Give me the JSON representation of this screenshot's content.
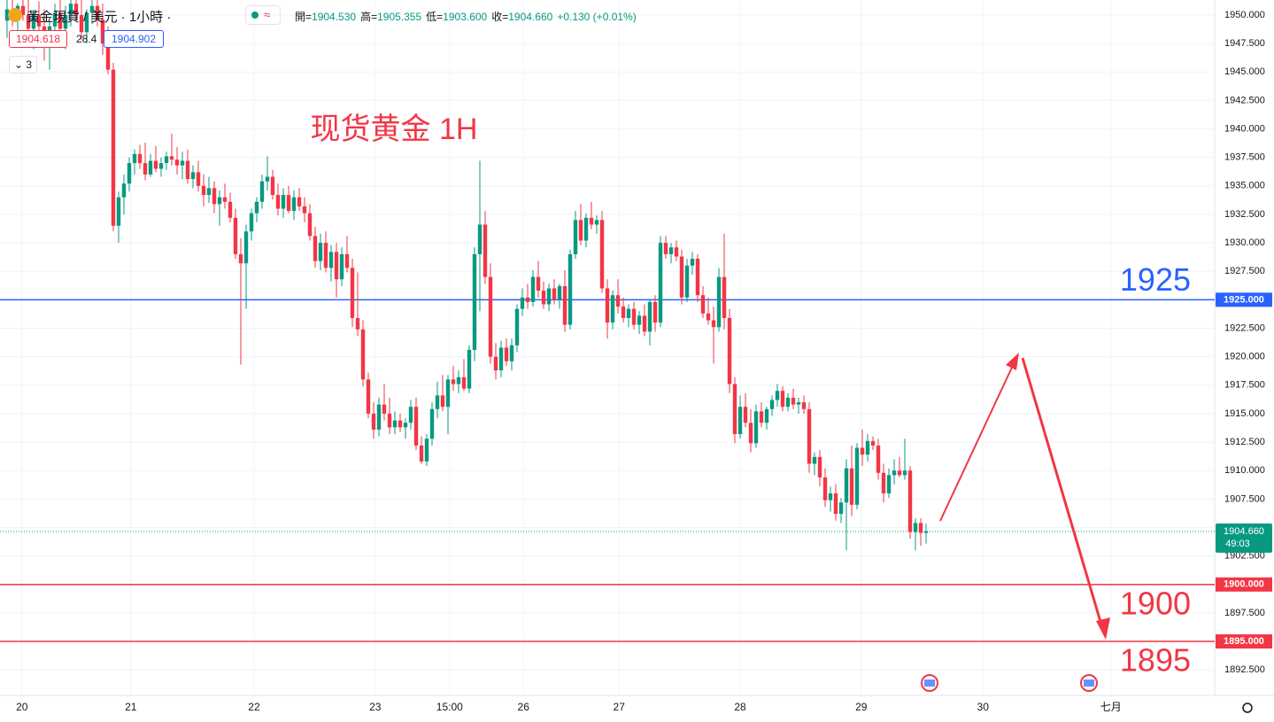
{
  "header": {
    "symbol": "黃金現貨 / 美元 · 1小時 ·",
    "approx": "≈",
    "ohlc": [
      {
        "label": "開=",
        "value": "1904.530"
      },
      {
        "label": "高=",
        "value": "1905.355"
      },
      {
        "label": "低=",
        "value": "1903.600"
      },
      {
        "label": "收=",
        "value": "1904.660"
      }
    ],
    "change": "+0.130 (+0.01%)",
    "sell": "1904.618",
    "spread": "28.4",
    "buy": "1904.902",
    "indicators": "3"
  },
  "chart_data": {
    "type": "candlestick",
    "title": "现货黄金 1H",
    "up_color": "#089981",
    "down_color": "#f23645",
    "grid": true,
    "xlim": [
      -1.33,
      227.33
    ],
    "ylim": [
      1890.26,
      1951.32
    ],
    "xticks": [
      {
        "value": 2.8,
        "label": "20"
      },
      {
        "value": 23.3,
        "label": "21"
      },
      {
        "value": 46.5,
        "label": "22"
      },
      {
        "value": 69.3,
        "label": "23"
      },
      {
        "value": 83.3,
        "label": "15:00"
      },
      {
        "value": 97.2,
        "label": "26"
      },
      {
        "value": 115.2,
        "label": "27"
      },
      {
        "value": 138,
        "label": "28"
      },
      {
        "value": 160.8,
        "label": "29"
      },
      {
        "value": 183.7,
        "label": "30"
      },
      {
        "value": 207.8,
        "label": "七月"
      }
    ],
    "yticks": [
      {
        "value": 1892.5,
        "label": "1892.500"
      },
      {
        "value": 1895,
        "label": "1895.000"
      },
      {
        "value": 1897.5,
        "label": "1897.500"
      },
      {
        "value": 1900,
        "label": "1900.000"
      },
      {
        "value": 1902.5,
        "label": "1902.500"
      },
      {
        "value": 1905,
        "label": "1905.000"
      },
      {
        "value": 1907.5,
        "label": "1907.500"
      },
      {
        "value": 1910,
        "label": "1910.000"
      },
      {
        "value": 1912.5,
        "label": "1912.500"
      },
      {
        "value": 1915,
        "label": "1915.000"
      },
      {
        "value": 1917.5,
        "label": "1917.500"
      },
      {
        "value": 1920,
        "label": "1920.000"
      },
      {
        "value": 1922.5,
        "label": "1922.500"
      },
      {
        "value": 1925,
        "label": "1925.000"
      },
      {
        "value": 1927.5,
        "label": "1927.500"
      },
      {
        "value": 1930,
        "label": "1930.000"
      },
      {
        "value": 1932.5,
        "label": "1932.500"
      },
      {
        "value": 1935,
        "label": "1935.000"
      },
      {
        "value": 1937.5,
        "label": "1937.500"
      },
      {
        "value": 1940,
        "label": "1940.000"
      },
      {
        "value": 1942.5,
        "label": "1942.500"
      },
      {
        "value": 1945,
        "label": "1945.000"
      },
      {
        "value": 1947.5,
        "label": "1947.500"
      },
      {
        "value": 1950,
        "label": "1950.000"
      }
    ],
    "levels": [
      {
        "value": 1925,
        "label": "1925.000",
        "color": "#2962ff"
      },
      {
        "value": 1900,
        "label": "1900.000",
        "color": "#f23645"
      },
      {
        "value": 1895,
        "label": "1895.000",
        "color": "#f23645"
      }
    ],
    "last": {
      "value": 1904.66,
      "label": "1904.660",
      "countdown": "49:03",
      "color": "#089981"
    },
    "candles": [
      [
        1949.5,
        1951.5,
        1948,
        1950.5
      ],
      [
        1950.5,
        1952,
        1949,
        1949.5
      ],
      [
        1949.5,
        1951,
        1948.5,
        1950.8
      ],
      [
        1950.8,
        1952,
        1949.5,
        1950
      ],
      [
        1950,
        1951.5,
        1948,
        1948.8
      ],
      [
        1948.8,
        1950.5,
        1947,
        1950
      ],
      [
        1950,
        1951.2,
        1948.5,
        1949
      ],
      [
        1949,
        1950.5,
        1946,
        1947.5
      ],
      [
        1947.5,
        1949.5,
        1945.2,
        1949
      ],
      [
        1949,
        1951,
        1947.5,
        1950.2
      ],
      [
        1950.2,
        1951.5,
        1948.2,
        1948.8
      ],
      [
        1948.8,
        1950.8,
        1947,
        1950
      ],
      [
        1950,
        1952,
        1949,
        1951
      ],
      [
        1951,
        1952.5,
        1949.5,
        1950
      ],
      [
        1950,
        1951.5,
        1947.8,
        1948.5
      ],
      [
        1948.5,
        1950.5,
        1947.5,
        1950.2
      ],
      [
        1950.2,
        1951.8,
        1949.2,
        1950.8
      ],
      [
        1950.8,
        1952,
        1949,
        1949.6
      ],
      [
        1949.6,
        1951,
        1946.5,
        1947.5
      ],
      [
        1947.5,
        1949,
        1944.8,
        1945.2
      ],
      [
        1945.2,
        1945.8,
        1931,
        1931.5
      ],
      [
        1931.5,
        1934.5,
        1930,
        1934
      ],
      [
        1934,
        1936,
        1932.5,
        1935.2
      ],
      [
        1935.2,
        1937.5,
        1934.5,
        1937
      ],
      [
        1937,
        1938.2,
        1936,
        1937.8
      ],
      [
        1937.8,
        1938.6,
        1936.5,
        1937
      ],
      [
        1937,
        1938.8,
        1935.5,
        1936
      ],
      [
        1936,
        1937.8,
        1935.8,
        1937.2
      ],
      [
        1937.2,
        1938.5,
        1936.2,
        1936.5
      ],
      [
        1936.5,
        1937.5,
        1935.8,
        1937
      ],
      [
        1937,
        1938,
        1936.4,
        1937.6
      ],
      [
        1937.6,
        1939.6,
        1936.8,
        1937.3
      ],
      [
        1937.3,
        1938.4,
        1936,
        1936.8
      ],
      [
        1936.8,
        1938,
        1935.6,
        1937.2
      ],
      [
        1937.2,
        1938.2,
        1935.2,
        1935.6
      ],
      [
        1935.6,
        1936.8,
        1934.8,
        1936.2
      ],
      [
        1936.2,
        1937.2,
        1934.5,
        1935
      ],
      [
        1935,
        1936,
        1933.2,
        1934.2
      ],
      [
        1934.2,
        1935.8,
        1933.5,
        1934.8
      ],
      [
        1934.8,
        1935.4,
        1932.6,
        1933.4
      ],
      [
        1933.4,
        1934.6,
        1931.5,
        1934
      ],
      [
        1934,
        1935.2,
        1933,
        1933.6
      ],
      [
        1933.6,
        1934.4,
        1931.8,
        1932.2
      ],
      [
        1932.2,
        1933,
        1928.6,
        1929
      ],
      [
        1929,
        1930.4,
        1919.3,
        1928.2
      ],
      [
        1928.2,
        1931.6,
        1924.2,
        1931
      ],
      [
        1931,
        1933,
        1930.2,
        1932.6
      ],
      [
        1932.6,
        1934,
        1931.8,
        1933.6
      ],
      [
        1933.6,
        1936,
        1933,
        1935.4
      ],
      [
        1935.4,
        1937.6,
        1934.6,
        1935.8
      ],
      [
        1935.8,
        1936.4,
        1933.8,
        1934.2
      ],
      [
        1934.2,
        1935.2,
        1932.4,
        1933
      ],
      [
        1933,
        1934.8,
        1932.2,
        1934.2
      ],
      [
        1934.2,
        1935,
        1932.6,
        1932.8
      ],
      [
        1932.8,
        1934.6,
        1932,
        1934
      ],
      [
        1934,
        1934.8,
        1932.8,
        1933.2
      ],
      [
        1933.2,
        1934,
        1931.8,
        1932.6
      ],
      [
        1932.6,
        1933.4,
        1930.2,
        1930.6
      ],
      [
        1930.6,
        1931.4,
        1927.8,
        1928.4
      ],
      [
        1928.4,
        1930.8,
        1927.6,
        1930
      ],
      [
        1930,
        1931,
        1927.4,
        1927.8
      ],
      [
        1927.8,
        1929.8,
        1926.6,
        1929.2
      ],
      [
        1929.2,
        1930,
        1925.2,
        1926.8
      ],
      [
        1926.8,
        1929.6,
        1926.2,
        1929
      ],
      [
        1929,
        1930.6,
        1927.4,
        1927.8
      ],
      [
        1927.8,
        1928.6,
        1922.6,
        1923.4
      ],
      [
        1923.4,
        1927.4,
        1921.8,
        1922.4
      ],
      [
        1922.4,
        1923.2,
        1917.4,
        1918
      ],
      [
        1918,
        1918.6,
        1914.6,
        1915
      ],
      [
        1915,
        1916,
        1912.8,
        1913.6
      ],
      [
        1913.6,
        1916.4,
        1913,
        1915.8
      ],
      [
        1915.8,
        1917.6,
        1914.4,
        1915
      ],
      [
        1915,
        1916.4,
        1913.2,
        1913.8
      ],
      [
        1913.8,
        1915.2,
        1913.2,
        1914.4
      ],
      [
        1914.4,
        1915,
        1913.4,
        1913.8
      ],
      [
        1913.8,
        1914.6,
        1912.8,
        1914.2
      ],
      [
        1914.2,
        1916.2,
        1913.6,
        1915.6
      ],
      [
        1915.6,
        1916.4,
        1911.8,
        1912.2
      ],
      [
        1912.2,
        1913,
        1910.6,
        1910.8
      ],
      [
        1910.8,
        1913.2,
        1910.4,
        1912.8
      ],
      [
        1912.8,
        1916,
        1912.2,
        1915.4
      ],
      [
        1915.4,
        1917.8,
        1914.6,
        1916.6
      ],
      [
        1916.6,
        1918.4,
        1915.2,
        1915.6
      ],
      [
        1915.6,
        1918.4,
        1913.2,
        1918
      ],
      [
        1918,
        1919.2,
        1917,
        1917.6
      ],
      [
        1917.6,
        1918.8,
        1916.8,
        1918.2
      ],
      [
        1918.2,
        1919.8,
        1917,
        1917.2
      ],
      [
        1917.2,
        1921,
        1916.8,
        1920.6
      ],
      [
        1920.6,
        1929.6,
        1919.6,
        1929
      ],
      [
        1929,
        1937.2,
        1924,
        1931.6
      ],
      [
        1931.6,
        1932.8,
        1926.4,
        1927
      ],
      [
        1927,
        1928.2,
        1919.4,
        1920
      ],
      [
        1920,
        1921.2,
        1918,
        1918.8
      ],
      [
        1918.8,
        1921.4,
        1918.2,
        1920.8
      ],
      [
        1920.8,
        1921.6,
        1919.2,
        1919.6
      ],
      [
        1919.6,
        1921.6,
        1918.8,
        1921
      ],
      [
        1921,
        1924.6,
        1920.4,
        1924.2
      ],
      [
        1924.2,
        1926,
        1923.6,
        1925.2
      ],
      [
        1925.2,
        1926.4,
        1924.2,
        1924.8
      ],
      [
        1924.8,
        1927.6,
        1924.4,
        1927
      ],
      [
        1927,
        1928.4,
        1925.2,
        1925.8
      ],
      [
        1925.8,
        1926.6,
        1924.2,
        1924.6
      ],
      [
        1924.6,
        1926.4,
        1924,
        1926
      ],
      [
        1926,
        1926.8,
        1924.6,
        1925
      ],
      [
        1925,
        1926.4,
        1924.2,
        1926.2
      ],
      [
        1926.2,
        1927.6,
        1922.2,
        1922.8
      ],
      [
        1922.8,
        1929.4,
        1922.4,
        1929
      ],
      [
        1929,
        1932.8,
        1928.6,
        1932
      ],
      [
        1932,
        1933.4,
        1929.8,
        1930.2
      ],
      [
        1930.2,
        1932.6,
        1929.6,
        1932.2
      ],
      [
        1932.2,
        1933.6,
        1931.2,
        1931.6
      ],
      [
        1931.6,
        1932.4,
        1930.8,
        1932
      ],
      [
        1932,
        1932.8,
        1925.6,
        1926
      ],
      [
        1926,
        1926.8,
        1921.6,
        1923
      ],
      [
        1923,
        1925.8,
        1922.4,
        1925.4
      ],
      [
        1925.4,
        1926.8,
        1923.8,
        1924.4
      ],
      [
        1924.4,
        1925.2,
        1923,
        1923.4
      ],
      [
        1923.4,
        1924.6,
        1922.6,
        1924.2
      ],
      [
        1924.2,
        1924.8,
        1922.4,
        1922.8
      ],
      [
        1922.8,
        1924,
        1922,
        1923.6
      ],
      [
        1923.6,
        1924.6,
        1921.8,
        1922.2
      ],
      [
        1922.2,
        1925,
        1921,
        1924.8
      ],
      [
        1924.8,
        1925.4,
        1922.2,
        1923
      ],
      [
        1923,
        1930.6,
        1922.6,
        1930
      ],
      [
        1930,
        1930.6,
        1928.6,
        1929
      ],
      [
        1929,
        1930,
        1928.2,
        1929.6
      ],
      [
        1929.6,
        1930.2,
        1928.4,
        1928.8
      ],
      [
        1928.8,
        1929.4,
        1924.6,
        1925.2
      ],
      [
        1925.2,
        1928.6,
        1924.8,
        1928
      ],
      [
        1928,
        1929.2,
        1927.2,
        1928.6
      ],
      [
        1928.6,
        1929,
        1924.8,
        1925.4
      ],
      [
        1925.4,
        1926.2,
        1923.4,
        1923.8
      ],
      [
        1923.8,
        1925.2,
        1922.8,
        1923.2
      ],
      [
        1923.2,
        1924.4,
        1919.4,
        1922.6
      ],
      [
        1922.6,
        1927.8,
        1922.2,
        1927
      ],
      [
        1927,
        1930.8,
        1922.4,
        1923.4
      ],
      [
        1923.4,
        1924.2,
        1916.8,
        1917.6
      ],
      [
        1917.6,
        1918.2,
        1912.4,
        1913.2
      ],
      [
        1913.2,
        1916.6,
        1912.8,
        1915.6
      ],
      [
        1915.6,
        1916.8,
        1913.8,
        1914.2
      ],
      [
        1914.2,
        1915.4,
        1911.6,
        1912.4
      ],
      [
        1912.4,
        1915.8,
        1912,
        1915.2
      ],
      [
        1915.2,
        1916,
        1913.8,
        1914.2
      ],
      [
        1914.2,
        1915.6,
        1913.6,
        1915.4
      ],
      [
        1915.4,
        1916.6,
        1914.8,
        1916.2
      ],
      [
        1916.2,
        1917.6,
        1915.6,
        1917
      ],
      [
        1917,
        1917.4,
        1915.2,
        1915.6
      ],
      [
        1915.6,
        1916.8,
        1915.2,
        1916.4
      ],
      [
        1916.4,
        1917.2,
        1915.4,
        1915.8
      ],
      [
        1915.8,
        1916.4,
        1915,
        1916
      ],
      [
        1916,
        1916.6,
        1915,
        1915.4
      ],
      [
        1915.4,
        1916,
        1909.8,
        1910.6
      ],
      [
        1910.6,
        1911.6,
        1909.6,
        1911.2
      ],
      [
        1911.2,
        1911.8,
        1908.6,
        1909.4
      ],
      [
        1909.4,
        1910.2,
        1906.8,
        1907.4
      ],
      [
        1907.4,
        1908.6,
        1906.4,
        1908
      ],
      [
        1908,
        1908.8,
        1905.6,
        1906.2
      ],
      [
        1906.2,
        1907.6,
        1905.4,
        1907.2
      ],
      [
        1907.2,
        1911,
        1903,
        1910.2
      ],
      [
        1910.2,
        1912.2,
        1906,
        1907
      ],
      [
        1907,
        1912.4,
        1906.6,
        1912
      ],
      [
        1912,
        1913.6,
        1910.4,
        1911.4
      ],
      [
        1911.4,
        1913.2,
        1910.8,
        1912.6
      ],
      [
        1912.6,
        1913,
        1911.8,
        1912.2
      ],
      [
        1912.2,
        1912.8,
        1909.2,
        1909.8
      ],
      [
        1909.8,
        1910.6,
        1907.2,
        1908
      ],
      [
        1908,
        1910.2,
        1907.6,
        1909.6
      ],
      [
        1909.6,
        1911,
        1908.8,
        1910
      ],
      [
        1910,
        1911.2,
        1909.4,
        1909.6
      ],
      [
        1909.6,
        1912.8,
        1909.2,
        1910
      ],
      [
        1910,
        1910.4,
        1904,
        1904.6
      ],
      [
        1904.6,
        1905.8,
        1903,
        1905.4
      ],
      [
        1905.4,
        1905.8,
        1903.4,
        1904.53
      ],
      [
        1904.53,
        1905.355,
        1903.6,
        1904.66
      ]
    ]
  }
}
